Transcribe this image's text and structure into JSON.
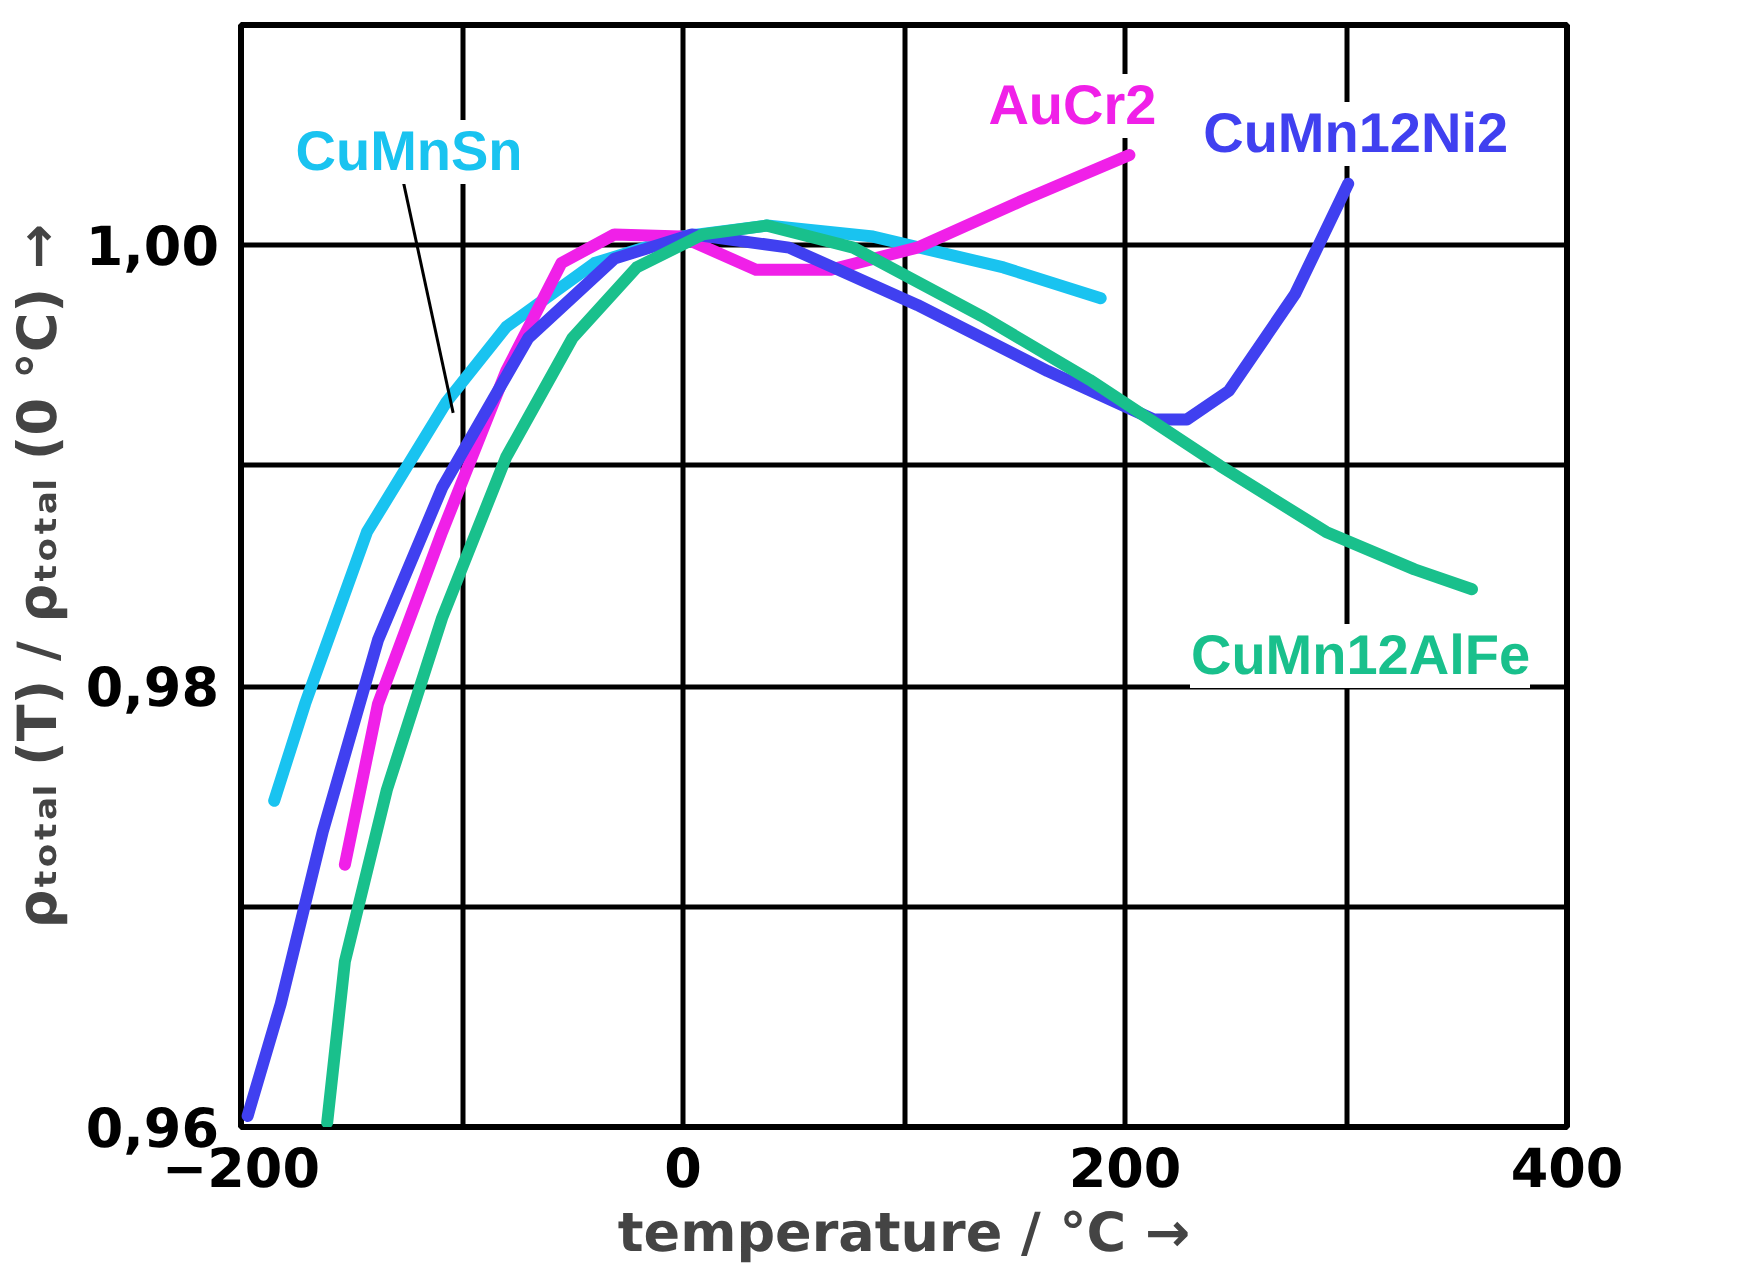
{
  "chart_data": {
    "type": "line",
    "xlabel": "temperature / °C →",
    "ylabel": "ρₜₒₜₐₗ (T) / ρₜₒₜₐₗ (0 °C) →",
    "xlim": [
      -200,
      400
    ],
    "ylim": [
      0.96,
      1.01
    ],
    "xticks": [
      -200,
      {
        "value": -100,
        "label": null
      },
      0,
      {
        "value": 100,
        "label": null
      },
      200,
      {
        "value": 300,
        "label": null
      },
      400
    ],
    "yticks": [
      {
        "value": 0.96,
        "label": "0,96"
      },
      {
        "value": 0.97,
        "label": null
      },
      {
        "value": 0.98,
        "label": "0,98"
      },
      {
        "value": 0.99,
        "label": null
      },
      {
        "value": 1.0,
        "label": "1,00"
      }
    ],
    "grid": true,
    "legend": false,
    "line_style": "solid",
    "marker": "none",
    "series": [
      {
        "name": "CuMnSn",
        "color": "#19c3f0",
        "x": [
          -185,
          -171,
          -143,
          -107,
          -80,
          -40,
          -1,
          38,
          86,
          145,
          189
        ],
        "values": [
          0.9748,
          0.9792,
          0.987,
          0.9929,
          0.9963,
          0.9992,
          1.0004,
          1.0009,
          1.0004,
          0.999,
          0.9976
        ]
      },
      {
        "name": "AuCr2",
        "color": "#f020e8",
        "x": [
          -153,
          -138,
          -109,
          -80,
          -55,
          -31,
          -1,
          33,
          67,
          106,
          155,
          202
        ],
        "values": [
          0.9719,
          0.9792,
          0.987,
          0.9943,
          0.9992,
          1.0005,
          1.0004,
          0.9989,
          0.9989,
          0.9999,
          1.0021,
          1.0041
        ]
      },
      {
        "name": "CuMn12Ni2",
        "color": "#4040f0",
        "x": [
          -197,
          -182,
          -163,
          -138,
          -109,
          -70,
          -31,
          4,
          48,
          106,
          165,
          213,
          228,
          247,
          277,
          301
        ],
        "values": [
          0.9605,
          0.9656,
          0.9734,
          0.9821,
          0.989,
          0.9958,
          0.9994,
          1.0005,
          0.9999,
          0.9973,
          0.9943,
          0.9921,
          0.9921,
          0.9934,
          0.9978,
          1.0028
        ]
      },
      {
        "name": "CuMn12AlFe",
        "color": "#19c08c",
        "x": [
          -161,
          -153,
          -134,
          -109,
          -80,
          -50,
          -21,
          9,
          38,
          77,
          135,
          184,
          243,
          291,
          331,
          357
        ],
        "values": [
          0.9602,
          0.9675,
          0.9753,
          0.9831,
          0.9904,
          0.9958,
          0.999,
          1.0005,
          1.0009,
          0.9999,
          0.9968,
          0.9939,
          0.99,
          0.987,
          0.9853,
          0.9844
        ]
      }
    ]
  }
}
